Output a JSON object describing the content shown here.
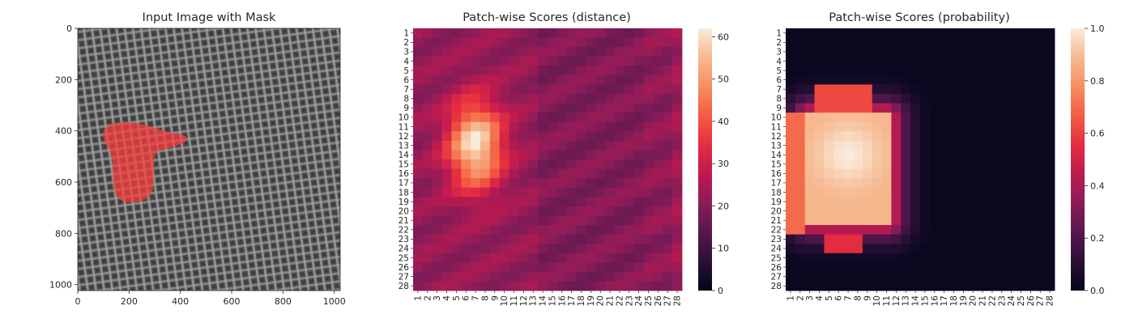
{
  "panels": [
    {
      "title": "Input Image with Mask",
      "x_ticks": [
        "0",
        "200",
        "400",
        "600",
        "800",
        "1000"
      ],
      "y_ticks": [
        "0",
        "200",
        "400",
        "600",
        "800",
        "1000"
      ]
    },
    {
      "title": "Patch-wise Scores (distance)",
      "colorbar_ticks": [
        "0",
        "10",
        "20",
        "30",
        "40",
        "50",
        "60"
      ]
    },
    {
      "title": "Patch-wise Scores (probability)",
      "colorbar_ticks": [
        "0.0",
        "0.2",
        "0.4",
        "0.6",
        "0.8",
        "1.0"
      ]
    }
  ],
  "chart_data": [
    {
      "type": "image",
      "title": "Input Image with Mask",
      "xlim": [
        0,
        1023
      ],
      "ylim": [
        1023,
        0
      ],
      "x_ticks": [
        0,
        200,
        400,
        600,
        800,
        1000
      ],
      "y_ticks": [
        0,
        200,
        400,
        600,
        800,
        1000
      ],
      "overlay": {
        "color": "#ff3b3b"
      }
    },
    {
      "type": "heatmap",
      "title": "Patch-wise Scores (distance)",
      "rows": 28,
      "cols": 28,
      "x_ticks": [
        1,
        2,
        3,
        4,
        5,
        6,
        7,
        8,
        9,
        10,
        11,
        12,
        13,
        14,
        15,
        16,
        17,
        18,
        19,
        20,
        21,
        22,
        23,
        24,
        25,
        26,
        27,
        28
      ],
      "y_ticks": [
        1,
        2,
        3,
        4,
        5,
        6,
        7,
        8,
        9,
        10,
        11,
        12,
        13,
        14,
        15,
        16,
        17,
        18,
        19,
        20,
        21,
        22,
        23,
        24,
        25,
        26,
        27,
        28
      ],
      "color_range": [
        0,
        62
      ],
      "colorbar_ticks": [
        0,
        10,
        20,
        30,
        40,
        50,
        60
      ],
      "colormap": "rocket",
      "baseline": 22,
      "peak": {
        "row": 13,
        "col": 7,
        "value": 61
      }
    },
    {
      "type": "heatmap",
      "title": "Patch-wise Scores (probability)",
      "rows": 28,
      "cols": 28,
      "x_ticks": [
        1,
        2,
        3,
        4,
        5,
        6,
        7,
        8,
        9,
        10,
        11,
        12,
        13,
        14,
        15,
        16,
        17,
        18,
        19,
        20,
        21,
        22,
        23,
        24,
        25,
        26,
        27,
        28
      ],
      "y_ticks": [
        1,
        2,
        3,
        4,
        5,
        6,
        7,
        8,
        9,
        10,
        11,
        12,
        13,
        14,
        15,
        16,
        17,
        18,
        19,
        20,
        21,
        22,
        23,
        24,
        25,
        26,
        27,
        28
      ],
      "color_range": [
        0,
        1
      ],
      "colorbar_ticks": [
        0.0,
        0.2,
        0.4,
        0.6,
        0.8,
        1.0
      ],
      "colormap": "rocket",
      "baseline": 0.0,
      "peak": {
        "row": 14,
        "col": 7,
        "value": 1.0
      }
    }
  ]
}
